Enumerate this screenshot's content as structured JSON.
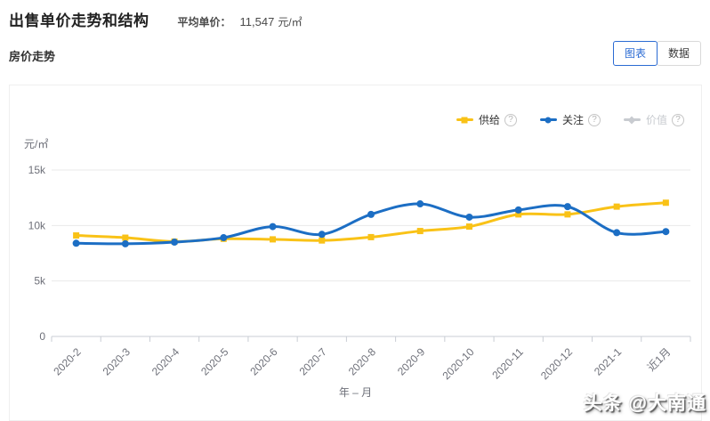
{
  "header": {
    "title": "出售单价走势和结构",
    "avg_label": "平均单价：",
    "avg_value": "11,547",
    "avg_unit": "元/㎡"
  },
  "section": {
    "title": "房价走势",
    "tabs": [
      {
        "label": "图表",
        "active": true
      },
      {
        "label": "数据",
        "active": false
      }
    ]
  },
  "chart_data": {
    "type": "line",
    "title": "房价走势",
    "x": [
      "2020-2",
      "2020-3",
      "2020-4",
      "2020-5",
      "2020-6",
      "2020-7",
      "2020-8",
      "2020-9",
      "2020-10",
      "2020-11",
      "2020-12",
      "2021-1",
      "近1月"
    ],
    "series": [
      {
        "name": "供给",
        "color": "#F9C217",
        "marker": "square",
        "enabled": true,
        "values": [
          9100,
          8900,
          8550,
          8800,
          8750,
          8650,
          8950,
          9500,
          9900,
          11000,
          11000,
          11700,
          12050
        ]
      },
      {
        "name": "关注",
        "color": "#1C6EC4",
        "marker": "circle",
        "enabled": true,
        "values": [
          8400,
          8350,
          8500,
          8900,
          9900,
          9200,
          11000,
          11950,
          10750,
          11400,
          11700,
          9350,
          9450
        ]
      },
      {
        "name": "价值",
        "color": "#C8CBD0",
        "marker": "diamond",
        "enabled": false,
        "values": []
      }
    ],
    "ylabel": "元/㎡",
    "xlabel": "年 – 月",
    "ylim": [
      0,
      15000
    ],
    "yticks": [
      {
        "v": 0,
        "label": "0"
      },
      {
        "v": 5000,
        "label": "5k"
      },
      {
        "v": 10000,
        "label": "10k"
      },
      {
        "v": 15000,
        "label": "15k"
      }
    ],
    "grid": true,
    "legend_position": "top-right",
    "disabled_color": "#C8CBD0"
  },
  "watermark": "头条 @大南通"
}
